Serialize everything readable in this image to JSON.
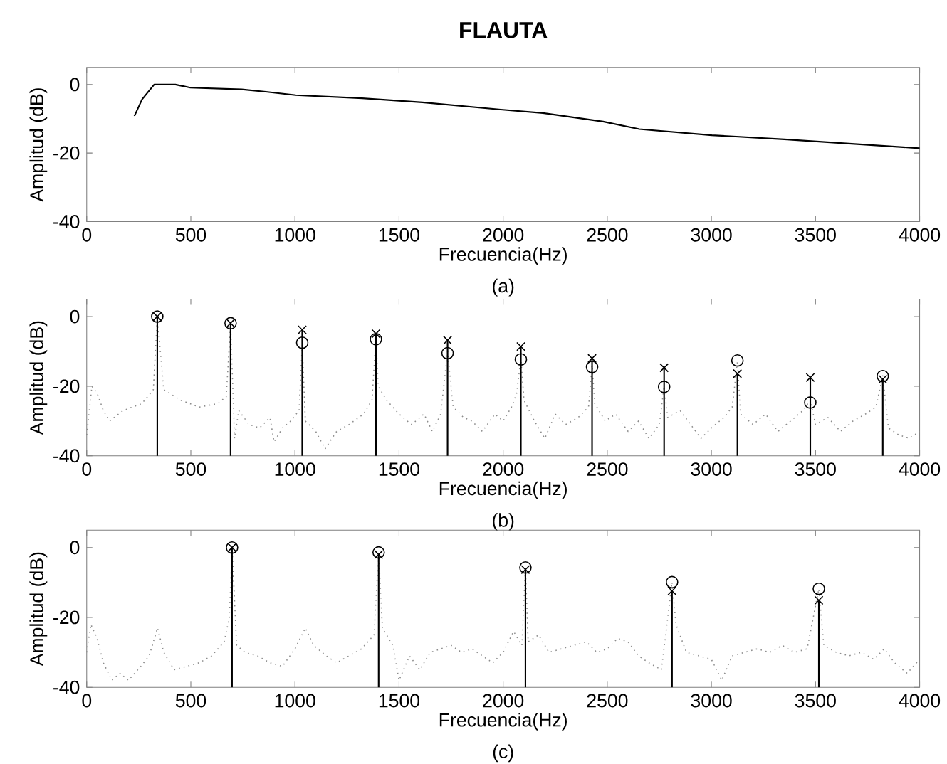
{
  "chart_data": [
    {
      "type": "line",
      "title": "FLAUTA",
      "xlabel": "Frecuencia(Hz)",
      "ylabel": "Amplitud (dB)",
      "annotations": [
        "(a)"
      ],
      "xlim": [
        0,
        4000
      ],
      "ylim": [
        -40,
        5
      ],
      "xticks": [
        0,
        500,
        1000,
        1500,
        2000,
        2500,
        3000,
        3500,
        4000
      ],
      "yticks": [
        -40,
        -20,
        0
      ],
      "series": [
        {
          "color": "#000000",
          "line_style": "solid",
          "marker": "none",
          "x": [
            229,
            266,
            324,
            426,
            498,
            744,
            860,
            1004,
            1323,
            1612,
            1988,
            2191,
            2480,
            2654,
            3002,
            3350,
            4000
          ],
          "values": [
            -9.2,
            -4.3,
            0,
            0,
            -0.9,
            -1.4,
            -2.1,
            -3.1,
            -4.0,
            -5.2,
            -7.3,
            -8.3,
            -10.8,
            -13.0,
            -14.8,
            -16.0,
            -18.6
          ]
        }
      ]
    },
    {
      "type": "line",
      "xlabel": "Frecuencia(Hz)",
      "ylabel": "Amplitud (dB)",
      "annotations": [
        "(b)"
      ],
      "xlim": [
        0,
        4000
      ],
      "ylim": [
        -40,
        5
      ],
      "xticks": [
        0,
        500,
        1000,
        1500,
        2000,
        2500,
        3000,
        3500,
        4000
      ],
      "yticks": [
        -40,
        -20,
        0
      ],
      "series": [
        {
          "color": "#8c8c8c",
          "line_style": "dotted",
          "marker": "none",
          "x": [
            0,
            25,
            50,
            80,
            110,
            175,
            265,
            320,
            339,
            370,
            450,
            540,
            630,
            670,
            691,
            710,
            730,
            780,
            830,
            880,
            900,
            940,
            980,
            1020,
            1035,
            1050,
            1100,
            1145,
            1200,
            1260,
            1330,
            1370,
            1389,
            1400,
            1440,
            1500,
            1560,
            1620,
            1660,
            1700,
            1733,
            1760,
            1810,
            1850,
            1900,
            1960,
            2000,
            2040,
            2065,
            2085,
            2100,
            2150,
            2200,
            2250,
            2300,
            2360,
            2410,
            2427,
            2440,
            2490,
            2540,
            2600,
            2650,
            2700,
            2750,
            2773,
            2790,
            2850,
            2900,
            2950,
            3000,
            3060,
            3100,
            3125,
            3140,
            3200,
            3260,
            3320,
            3380,
            3440,
            3475,
            3500,
            3560,
            3620,
            3680,
            3740,
            3790,
            3823,
            3850,
            3900,
            3950,
            4000
          ],
          "values": [
            -34,
            -20,
            -22,
            -27,
            -30,
            -27,
            -25,
            -21,
            0,
            -21,
            -24,
            -26,
            -25,
            -23,
            -2,
            -35,
            -27,
            -31,
            -32,
            -29,
            -36,
            -32,
            -30,
            -27,
            -8,
            -30,
            -33,
            -38,
            -33,
            -31,
            -28,
            -24,
            -6,
            -20,
            -24,
            -28,
            -31,
            -28,
            -33,
            -28,
            -10,
            -26,
            -29,
            -30,
            -33,
            -28,
            -30,
            -26,
            -22,
            -12,
            -24,
            -30,
            -35,
            -28,
            -31,
            -29,
            -26,
            -14,
            -25,
            -30,
            -28,
            -33,
            -30,
            -35,
            -31,
            -20,
            -29,
            -27,
            -31,
            -35,
            -32,
            -29,
            -26,
            -13,
            -28,
            -31,
            -28,
            -33,
            -30,
            -27,
            -24,
            -31,
            -29,
            -33,
            -30,
            -28,
            -26,
            -17,
            -32,
            -34,
            -35,
            -33
          ]
        },
        {
          "color": "#000000",
          "line_style": "solid",
          "marker": "none",
          "x": [
            339,
            339
          ],
          "values": [
            -40,
            0
          ]
        },
        {
          "color": "#000000",
          "line_style": "solid",
          "marker": "none",
          "x": [
            691,
            691
          ],
          "values": [
            -40,
            -1.9
          ]
        },
        {
          "color": "#000000",
          "line_style": "solid",
          "marker": "none",
          "x": [
            1035,
            1035
          ],
          "values": [
            -40,
            -3.8
          ]
        },
        {
          "color": "#000000",
          "line_style": "solid",
          "marker": "none",
          "x": [
            1389,
            1389
          ],
          "values": [
            -40,
            -4.9
          ]
        },
        {
          "color": "#000000",
          "line_style": "solid",
          "marker": "none",
          "x": [
            1733,
            1733
          ],
          "values": [
            -40,
            -6.8
          ]
        },
        {
          "color": "#000000",
          "line_style": "solid",
          "marker": "none",
          "x": [
            2085,
            2085
          ],
          "values": [
            -40,
            -8.6
          ]
        },
        {
          "color": "#000000",
          "line_style": "solid",
          "marker": "none",
          "x": [
            2427,
            2427
          ],
          "values": [
            -40,
            -12
          ]
        },
        {
          "color": "#000000",
          "line_style": "solid",
          "marker": "none",
          "x": [
            2773,
            2773
          ],
          "values": [
            -40,
            -14.7
          ]
        },
        {
          "color": "#000000",
          "line_style": "solid",
          "marker": "none",
          "x": [
            3125,
            3125
          ],
          "values": [
            -40,
            -16.4
          ]
        },
        {
          "color": "#000000",
          "line_style": "solid",
          "marker": "none",
          "x": [
            3475,
            3475
          ],
          "values": [
            -40,
            -17.5
          ]
        },
        {
          "color": "#000000",
          "line_style": "solid",
          "marker": "none",
          "x": [
            3823,
            3823
          ],
          "values": [
            -40,
            -18
          ]
        },
        {
          "type": "scatter",
          "color": "#000000",
          "marker": "circle",
          "x": [
            339,
            691,
            1035,
            1389,
            1733,
            2085,
            2427,
            2773,
            3125,
            3475,
            3823
          ],
          "values": [
            0,
            -1.9,
            -7.5,
            -6.5,
            -10.5,
            -12.3,
            -14.5,
            -20.2,
            -12.6,
            -24.7,
            -17.1
          ]
        },
        {
          "type": "scatter",
          "color": "#000000",
          "marker": "cross",
          "x": [
            339,
            691,
            1035,
            1389,
            1733,
            2085,
            2427,
            2773,
            3125,
            3475,
            3823
          ],
          "values": [
            0,
            -1.9,
            -3.8,
            -4.9,
            -6.8,
            -8.6,
            -12,
            -14.7,
            -16.4,
            -17.5,
            -18
          ]
        }
      ]
    },
    {
      "type": "line",
      "xlabel": "Frecuencia(Hz)",
      "ylabel": "Amplitud (dB)",
      "annotations": [
        "(c)"
      ],
      "xlim": [
        0,
        4000
      ],
      "ylim": [
        -40,
        5
      ],
      "xticks": [
        0,
        500,
        1000,
        1500,
        2000,
        2500,
        3000,
        3500,
        4000
      ],
      "yticks": [
        -40,
        -20,
        0
      ],
      "series": [
        {
          "color": "#8c8c8c",
          "line_style": "dotted",
          "marker": "none",
          "x": [
            0,
            20,
            50,
            80,
            120,
            160,
            200,
            260,
            300,
            340,
            370,
            420,
            480,
            540,
            600,
            660,
            685,
            698,
            720,
            760,
            820,
            880,
            940,
            1000,
            1050,
            1090,
            1150,
            1200,
            1260,
            1320,
            1380,
            1402,
            1420,
            1470,
            1500,
            1550,
            1600,
            1650,
            1700,
            1750,
            1800,
            1850,
            1900,
            1950,
            2000,
            2050,
            2090,
            2107,
            2120,
            2170,
            2220,
            2280,
            2340,
            2400,
            2450,
            2500,
            2550,
            2600,
            2650,
            2700,
            2760,
            2811,
            2830,
            2880,
            2940,
            3000,
            3050,
            3100,
            3160,
            3220,
            3280,
            3340,
            3400,
            3460,
            3516,
            3540,
            3600,
            3660,
            3720,
            3780,
            3830,
            3880,
            3940,
            4000
          ],
          "values": [
            -30,
            -22,
            -26,
            -33,
            -38,
            -36,
            -38,
            -34,
            -31,
            -23,
            -30,
            -35,
            -34,
            -33,
            -31,
            -27,
            -20,
            0,
            -28,
            -30,
            -31,
            -33,
            -34,
            -29,
            -23,
            -28,
            -31,
            -33,
            -31,
            -29,
            -25,
            -1.4,
            -23,
            -28,
            -38,
            -31,
            -35,
            -30,
            -29,
            -28,
            -30,
            -29,
            -31,
            -33,
            -30,
            -24,
            -28,
            -5.7,
            -27,
            -25,
            -30,
            -29,
            -28,
            -27,
            -30,
            -29,
            -26,
            -27,
            -31,
            -33,
            -35,
            -9.9,
            -22,
            -30,
            -31,
            -32,
            -38,
            -31,
            -30,
            -29,
            -30,
            -28,
            -30,
            -29,
            -11.8,
            -28,
            -30,
            -31,
            -30,
            -32,
            -29,
            -33,
            -36,
            -32
          ]
        },
        {
          "color": "#000000",
          "line_style": "solid",
          "marker": "none",
          "x": [
            698,
            698
          ],
          "values": [
            -40,
            0
          ]
        },
        {
          "color": "#000000",
          "line_style": "solid",
          "marker": "none",
          "x": [
            1402,
            1402
          ],
          "values": [
            -40,
            -2
          ]
        },
        {
          "color": "#000000",
          "line_style": "solid",
          "marker": "none",
          "x": [
            2107,
            2107
          ],
          "values": [
            -40,
            -6.3
          ]
        },
        {
          "color": "#000000",
          "line_style": "solid",
          "marker": "none",
          "x": [
            2811,
            2811
          ],
          "values": [
            -40,
            -12.4
          ]
        },
        {
          "color": "#000000",
          "line_style": "solid",
          "marker": "none",
          "x": [
            3516,
            3516
          ],
          "values": [
            -40,
            -15.1
          ]
        },
        {
          "type": "scatter",
          "color": "#000000",
          "marker": "circle",
          "x": [
            698,
            1402,
            2107,
            2811,
            3516
          ],
          "values": [
            0,
            -1.4,
            -5.7,
            -9.9,
            -11.8
          ]
        },
        {
          "type": "scatter",
          "color": "#000000",
          "marker": "cross",
          "x": [
            698,
            1402,
            2107,
            2811,
            3516
          ],
          "values": [
            0,
            -2,
            -6.3,
            -12.4,
            -15.1
          ]
        }
      ]
    }
  ]
}
